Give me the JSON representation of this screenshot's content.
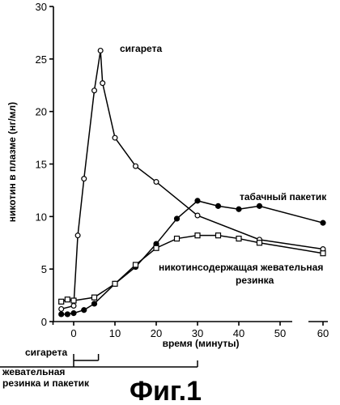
{
  "chart_data": {
    "type": "line",
    "ylabel": "никотин в плазме (нг/мл)",
    "xlabel": "время (минуты)",
    "ylim": [
      0,
      30
    ],
    "yticks": [
      0,
      5,
      10,
      15,
      20,
      25,
      30
    ],
    "xlim": [
      -5,
      60
    ],
    "xticks": [
      "0",
      "10",
      "20",
      "30",
      "40",
      "50",
      "60"
    ],
    "xtick_values": [
      0,
      10,
      20,
      30,
      40,
      50,
      60
    ],
    "axis_break": "between 50 and 60",
    "grid": false,
    "series": [
      {
        "name": "сигарета",
        "marker": "open-circle",
        "points": [
          [
            -3,
            1.2
          ],
          [
            0,
            1.5
          ],
          [
            1,
            8.2
          ],
          [
            2.5,
            13.6
          ],
          [
            5,
            22
          ],
          [
            6.5,
            25.8
          ],
          [
            7,
            22.7
          ],
          [
            10,
            17.5
          ],
          [
            15,
            14.8
          ],
          [
            20,
            13.3
          ],
          [
            30,
            10.1
          ],
          [
            45,
            7.8
          ],
          [
            60,
            6.9
          ]
        ]
      },
      {
        "name": "табачный пакетик",
        "marker": "filled-circle",
        "points": [
          [
            -3,
            0.7
          ],
          [
            -1.5,
            0.7
          ],
          [
            0,
            0.8
          ],
          [
            2.5,
            1.1
          ],
          [
            5,
            1.7
          ],
          [
            10,
            3.6
          ],
          [
            15,
            5.2
          ],
          [
            20,
            7.4
          ],
          [
            25,
            9.8
          ],
          [
            30,
            11.5
          ],
          [
            35,
            11
          ],
          [
            40,
            10.7
          ],
          [
            45,
            11
          ],
          [
            60,
            9.4
          ]
        ]
      },
      {
        "name": "никотинсодержащая жевательная резинка",
        "marker": "open-square",
        "points": [
          [
            -3,
            1.9
          ],
          [
            -1.5,
            2.1
          ],
          [
            0,
            2
          ],
          [
            5,
            2.3
          ],
          [
            10,
            3.6
          ],
          [
            15,
            5.4
          ],
          [
            20,
            7
          ],
          [
            25,
            7.9
          ],
          [
            30,
            8.2
          ],
          [
            35,
            8.2
          ],
          [
            40,
            7.9
          ],
          [
            45,
            7.5
          ],
          [
            60,
            6.5
          ]
        ]
      }
    ],
    "annotations": [
      {
        "text": "сигарета",
        "lines": [
          "сигарета"
        ]
      },
      {
        "text": "табачный пакетик",
        "lines": [
          "табачный пакетик"
        ]
      },
      {
        "text": "никотинсодержащая жевательная резинка",
        "lines": [
          "никотинсодержащая жевательная",
          "резинка"
        ]
      }
    ],
    "exposure_bars": [
      {
        "label_lines": [
          "сигарета"
        ],
        "start": 0,
        "end": 6
      },
      {
        "label_lines": [
          "жевательная",
          "резинка и пакетик"
        ],
        "start": 0,
        "end": 30
      }
    ],
    "caption": "Фиг.1"
  }
}
